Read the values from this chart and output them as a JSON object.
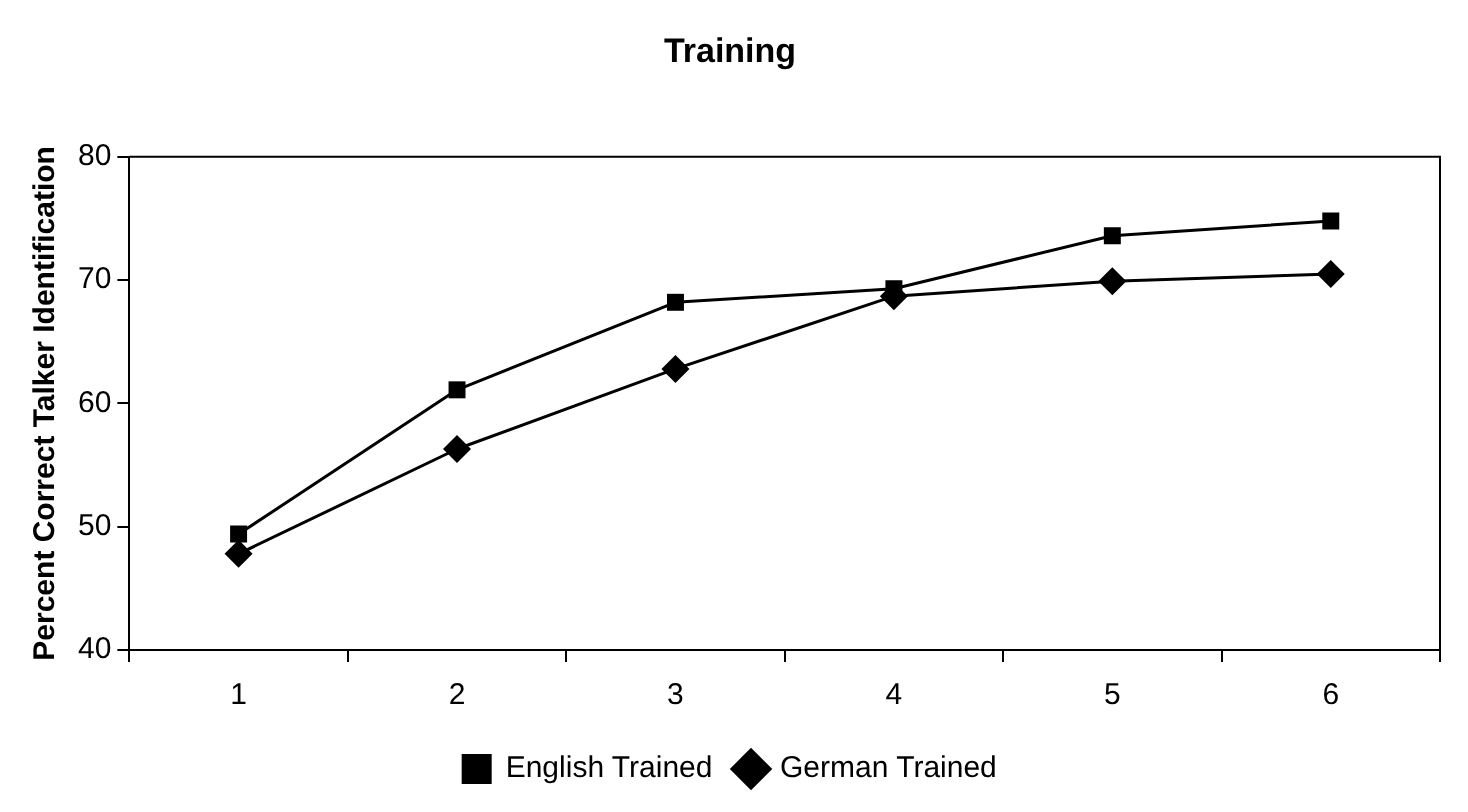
{
  "chart_data": {
    "type": "line",
    "title": "Training",
    "ylabel": "Percent Correct Talker Identification",
    "categories": [
      "1",
      "2",
      "3",
      "4",
      "5",
      "6"
    ],
    "series": [
      {
        "name": "German Trained",
        "color": "#000000",
        "marker": "diamond",
        "values": [
          47.8,
          56.3,
          62.8,
          68.7,
          69.9,
          70.5
        ]
      },
      {
        "name": "English Trained",
        "color": "#000000",
        "marker": "square",
        "values": [
          49.4,
          61.1,
          68.2,
          69.3,
          73.6,
          74.8
        ]
      }
    ],
    "ylim": [
      40,
      80
    ],
    "yticks": [
      40,
      50,
      60,
      70,
      80
    ],
    "grid": false,
    "legend": "bottom",
    "line_style": "solid"
  }
}
